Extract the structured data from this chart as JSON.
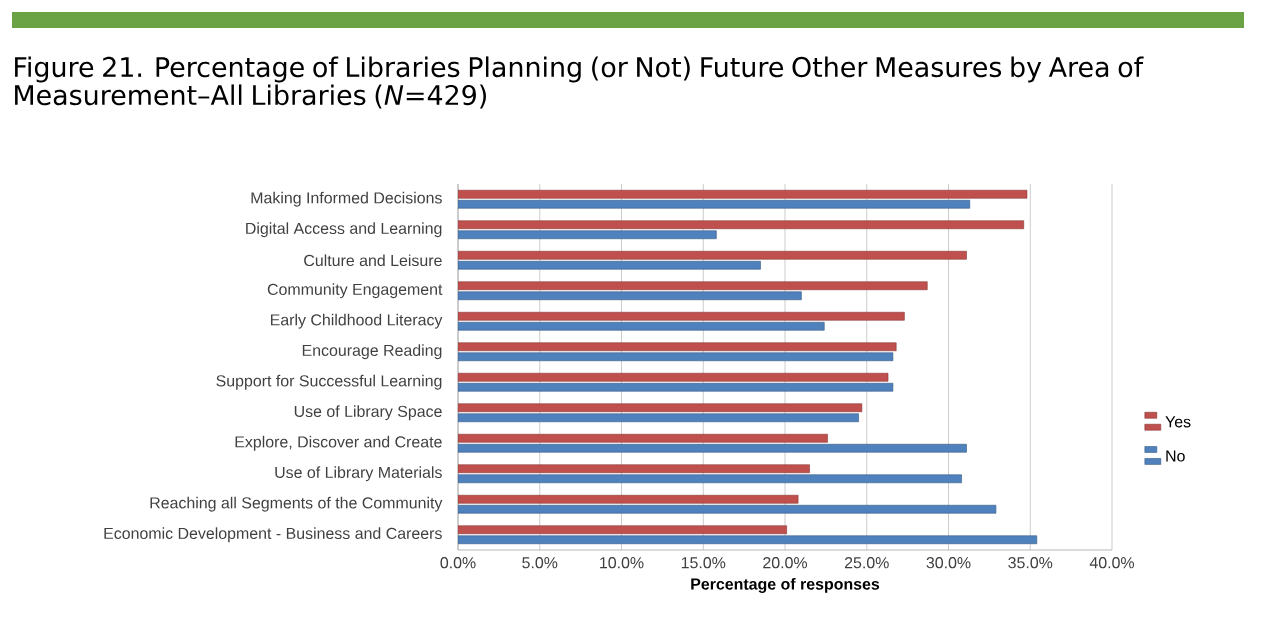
{
  "chart_data": {
    "type": "bar",
    "orientation": "horizontal",
    "title": "Figure 21. Percentage of Libraries Planning (or Not) Future Other Measures by Area of Measurement–All Libraries (*N*=429)",
    "xlabel": "Percentage  of responses",
    "categories": [
      "Making Informed Decisions",
      "Digital Access and Learning",
      "Culture and Leisure",
      "Community Engagement",
      "Early Childhood Literacy",
      "Encourage Reading",
      "Support for Successful Learning",
      "Use of Library Space",
      "Explore, Discover and Create",
      "Use of Library Materials",
      "Reaching all Segments of the Community",
      "Economic Development - Business and Careers"
    ],
    "series": [
      {
        "name": "Yes",
        "color": "#c0504d",
        "values": [
          34.8,
          34.6,
          31.1,
          28.7,
          27.3,
          26.8,
          26.3,
          24.7,
          22.6,
          21.5,
          20.8,
          20.1
        ]
      },
      {
        "name": "No",
        "color": "#4f81bd",
        "values": [
          31.3,
          15.8,
          18.5,
          21.0,
          22.4,
          26.6,
          26.6,
          24.5,
          31.1,
          30.8,
          32.9,
          35.4
        ]
      }
    ],
    "xlim": [
      0,
      40
    ],
    "xticks": [
      {
        "value": 0,
        "label": "0.0%"
      },
      {
        "value": 5,
        "label": "5.0%"
      },
      {
        "value": 10,
        "label": "10.0%"
      },
      {
        "value": 15,
        "label": "15.0%"
      },
      {
        "value": 20,
        "label": "20.0%"
      },
      {
        "value": 25,
        "label": "25.0%"
      },
      {
        "value": 30,
        "label": "30.0%"
      },
      {
        "value": 35,
        "label": "35.0%"
      },
      {
        "value": 40,
        "label": "40.0%"
      }
    ],
    "grid": "x",
    "legend": "right"
  }
}
